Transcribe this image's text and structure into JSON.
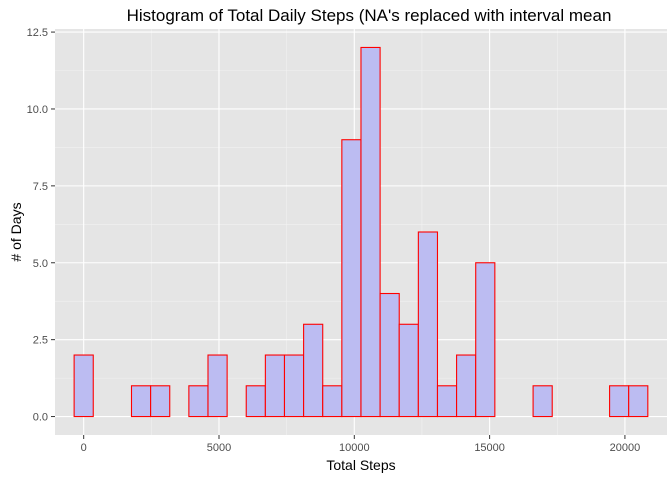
{
  "chart_data": {
    "type": "bar",
    "title": "Histogram of Total Daily Steps (NA's replaced with interval mean",
    "xlabel": "Total Steps",
    "ylabel": "# of Days",
    "bin_width": 706.7,
    "bins": [
      {
        "center": 0,
        "count": 2
      },
      {
        "center": 707,
        "count": 0
      },
      {
        "center": 1413,
        "count": 0
      },
      {
        "center": 2120,
        "count": 1
      },
      {
        "center": 2827,
        "count": 1
      },
      {
        "center": 3533,
        "count": 0
      },
      {
        "center": 4240,
        "count": 1
      },
      {
        "center": 4947,
        "count": 2
      },
      {
        "center": 5653,
        "count": 0
      },
      {
        "center": 6360,
        "count": 1
      },
      {
        "center": 7067,
        "count": 2
      },
      {
        "center": 7773,
        "count": 2
      },
      {
        "center": 8480,
        "count": 3
      },
      {
        "center": 9187,
        "count": 1
      },
      {
        "center": 9893,
        "count": 9
      },
      {
        "center": 10600,
        "count": 12
      },
      {
        "center": 11307,
        "count": 4
      },
      {
        "center": 12013,
        "count": 3
      },
      {
        "center": 12720,
        "count": 6
      },
      {
        "center": 13427,
        "count": 1
      },
      {
        "center": 14133,
        "count": 2
      },
      {
        "center": 14840,
        "count": 5
      },
      {
        "center": 15547,
        "count": 0
      },
      {
        "center": 16253,
        "count": 0
      },
      {
        "center": 16960,
        "count": 1
      },
      {
        "center": 17667,
        "count": 0
      },
      {
        "center": 18373,
        "count": 0
      },
      {
        "center": 19080,
        "count": 0
      },
      {
        "center": 19787,
        "count": 1
      },
      {
        "center": 20493,
        "count": 1
      }
    ],
    "xlim": [
      -1060,
      21555
    ],
    "ylim": [
      -0.6,
      12.6
    ],
    "x_ticks": [
      0,
      5000,
      10000,
      15000,
      20000
    ],
    "x_tick_labels": [
      "0",
      "5000",
      "10000",
      "15000",
      "20000"
    ],
    "y_ticks": [
      0,
      2.5,
      5,
      7.5,
      10,
      12.5
    ],
    "y_tick_labels": [
      "0.0",
      "2.5",
      "5.0",
      "7.5",
      "10.0",
      "12.5"
    ],
    "grid": true,
    "colors": {
      "panel_background": "#e5e5e5",
      "bar_fill": "#bcbcf2",
      "bar_outline": "#ff0000"
    }
  }
}
